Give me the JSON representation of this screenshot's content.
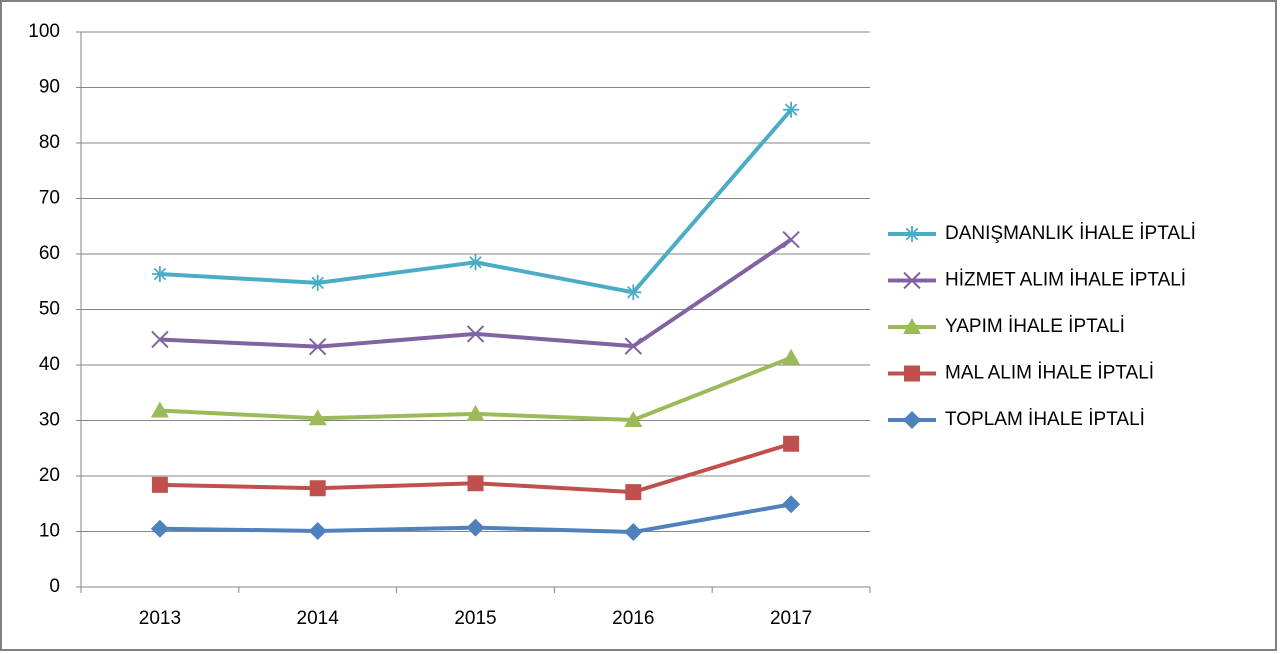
{
  "chart_data": {
    "type": "line",
    "categories": [
      "2013",
      "2014",
      "2015",
      "2016",
      "2017"
    ],
    "series": [
      {
        "name": "DANIŞMANLIK İHALE İPTALİ",
        "color": "#4bacc6",
        "marker": "star",
        "values": [
          56.4,
          54.8,
          58.5,
          53.1,
          86.0
        ]
      },
      {
        "name": "HİZMET ALIM İHALE İPTALİ",
        "color": "#8064a2",
        "marker": "x",
        "values": [
          44.6,
          43.3,
          45.6,
          43.4,
          62.6
        ]
      },
      {
        "name": "YAPIM İHALE İPTALİ",
        "color": "#9bbb59",
        "marker": "triangle",
        "values": [
          31.8,
          30.4,
          31.2,
          30.1,
          41.3
        ]
      },
      {
        "name": "MAL ALIM İHALE İPTALİ",
        "color": "#c0504d",
        "marker": "square",
        "values": [
          18.4,
          17.8,
          18.7,
          17.1,
          25.8
        ]
      },
      {
        "name": "TOPLAM İHALE İPTALİ",
        "color": "#4f81bd",
        "marker": "diamond",
        "values": [
          10.5,
          10.1,
          10.7,
          9.9,
          14.9
        ]
      }
    ],
    "ylim": [
      0,
      100
    ],
    "yticks": [
      0,
      10,
      20,
      30,
      40,
      50,
      60,
      70,
      80,
      90,
      100
    ],
    "grid": true,
    "legend": "right"
  }
}
